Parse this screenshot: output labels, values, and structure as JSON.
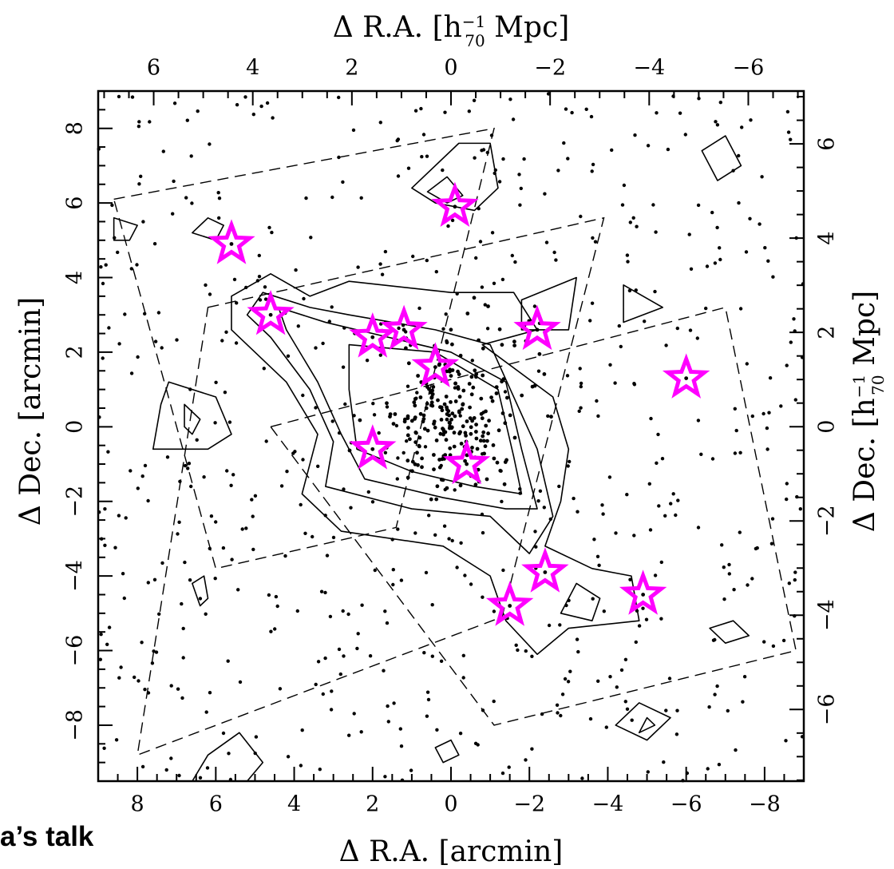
{
  "chart_data": {
    "type": "scatter",
    "title": "",
    "xlabel": "Δ R.A. [arcmin]",
    "ylabel": "Δ Dec. [arcmin]",
    "x2label": "Δ R.A. [h",
    "x2label_sub": "70",
    "x2label_sup": "−1",
    "x2label_unit": " Mpc]",
    "y2label": "Δ Dec. [h",
    "y2label_sub": "70",
    "y2label_sup": "−1",
    "y2label_unit": " Mpc]",
    "xlim": [
      9,
      -9
    ],
    "ylim": [
      -9.5,
      9
    ],
    "x2lim": [
      7.12,
      -7.12
    ],
    "y2lim": [
      -7.52,
      7.12
    ],
    "xticks": [
      "8",
      "6",
      "4",
      "2",
      "0",
      "−2",
      "−4",
      "−6",
      "−8"
    ],
    "xtick_values": [
      8,
      6,
      4,
      2,
      0,
      -2,
      -4,
      -6,
      -8
    ],
    "x2ticks": [
      "6",
      "4",
      "2",
      "0",
      "−2",
      "−4",
      "−6"
    ],
    "x2tick_values": [
      6,
      4,
      2,
      0,
      -2,
      -4,
      -6
    ],
    "yticks": [
      "−8",
      "−6",
      "−4",
      "−2",
      "0",
      "2",
      "4",
      "6",
      "8"
    ],
    "ytick_values": [
      -8,
      -6,
      -4,
      -2,
      0,
      2,
      4,
      6,
      8
    ],
    "y2ticks": [
      "−6",
      "−4",
      "−2",
      "0",
      "2",
      "4",
      "6"
    ],
    "y2tick_values": [
      -6,
      -4,
      -2,
      0,
      2,
      4,
      6
    ],
    "grid": false,
    "marker_color": "#000000",
    "highlight_color": "#ff00ff",
    "highlighted_sources": [
      {
        "x": 5.6,
        "y": 4.9
      },
      {
        "x": 4.6,
        "y": 3.0
      },
      {
        "x": 2.0,
        "y": 2.4
      },
      {
        "x": 1.2,
        "y": 2.6
      },
      {
        "x": 0.4,
        "y": 1.6
      },
      {
        "x": 2.0,
        "y": -0.6
      },
      {
        "x": -0.4,
        "y": -1.0
      },
      {
        "x": -0.1,
        "y": 5.9
      },
      {
        "x": -2.2,
        "y": 2.6
      },
      {
        "x": -6.0,
        "y": 1.3
      },
      {
        "x": -2.4,
        "y": -3.9
      },
      {
        "x": -1.5,
        "y": -4.8
      },
      {
        "x": -4.9,
        "y": -4.5
      }
    ],
    "dense_core": {
      "center": [
        0.0,
        0.3
      ],
      "spread": [
        1.6,
        1.9
      ],
      "count": 230
    },
    "background_source_count": 620,
    "survey_footprints": [
      [
        [
          8.6,
          6.1
        ],
        [
          -1.1,
          8.0
        ],
        [
          1.4,
          -2.7
        ],
        [
          6.0,
          -3.8
        ]
      ],
      [
        [
          6.2,
          3.2
        ],
        [
          -3.9,
          5.6
        ],
        [
          -1.3,
          -5.1
        ],
        [
          8.0,
          -8.8
        ]
      ],
      [
        [
          4.6,
          0.0
        ],
        [
          -7.0,
          3.2
        ],
        [
          -8.8,
          -6.0
        ],
        [
          -1.1,
          -8.0
        ]
      ]
    ],
    "contours": [
      {
        "level": 1,
        "points": [
          [
            5.6,
            3.5
          ],
          [
            4.6,
            4.1
          ],
          [
            3.6,
            3.5
          ],
          [
            2.6,
            3.9
          ],
          [
            0.0,
            3.6
          ],
          [
            -1.6,
            3.6
          ],
          [
            -2.2,
            2.6
          ],
          [
            -0.8,
            2.2
          ],
          [
            -2.6,
            0.8
          ],
          [
            -3.0,
            -0.6
          ],
          [
            -2.8,
            -2.0
          ],
          [
            -2.4,
            -3.2
          ],
          [
            -3.6,
            -3.8
          ],
          [
            -4.6,
            -4.0
          ],
          [
            -4.8,
            -5.2
          ],
          [
            -3.0,
            -5.4
          ],
          [
            -2.2,
            -6.1
          ],
          [
            -1.4,
            -5.2
          ],
          [
            -1.0,
            -4.0
          ],
          [
            0.2,
            -3.2
          ],
          [
            2.8,
            -2.8
          ],
          [
            3.8,
            -1.8
          ],
          [
            3.4,
            -0.2
          ],
          [
            4.2,
            1.2
          ],
          [
            5.6,
            2.6
          ]
        ]
      },
      {
        "level": 2,
        "points": [
          [
            4.8,
            3.6
          ],
          [
            3.6,
            3.2
          ],
          [
            2.6,
            3.0
          ],
          [
            0.4,
            2.6
          ],
          [
            -1.0,
            2.2
          ],
          [
            -1.6,
            0.8
          ],
          [
            -2.2,
            -0.6
          ],
          [
            -2.6,
            -2.4
          ],
          [
            -2.0,
            -3.4
          ],
          [
            -1.0,
            -2.4
          ],
          [
            1.0,
            -2.2
          ],
          [
            3.2,
            -1.6
          ],
          [
            3.0,
            -0.4
          ],
          [
            3.6,
            1.0
          ],
          [
            4.6,
            2.4
          ],
          [
            5.2,
            3.0
          ]
        ]
      },
      {
        "level": 3,
        "points": [
          [
            4.4,
            3.2
          ],
          [
            3.2,
            2.8
          ],
          [
            1.6,
            2.4
          ],
          [
            0.0,
            2.0
          ],
          [
            -1.4,
            1.2
          ],
          [
            -1.8,
            -0.6
          ],
          [
            -2.2,
            -2.2
          ],
          [
            -1.4,
            -2.2
          ],
          [
            0.2,
            -1.9
          ],
          [
            2.2,
            -1.4
          ],
          [
            2.8,
            -0.2
          ],
          [
            3.4,
            1.2
          ],
          [
            4.2,
            2.6
          ]
        ]
      },
      {
        "level": 4,
        "points": [
          [
            2.6,
            2.2
          ],
          [
            0.4,
            2.0
          ],
          [
            -1.2,
            1.0
          ],
          [
            -1.6,
            -0.8
          ],
          [
            -1.8,
            -1.8
          ],
          [
            -0.6,
            -1.6
          ],
          [
            1.0,
            -1.2
          ],
          [
            2.4,
            -0.6
          ],
          [
            2.6,
            1.0
          ]
        ]
      },
      {
        "level": 1,
        "points": [
          [
            1.0,
            6.4
          ],
          [
            -0.2,
            7.6
          ],
          [
            -1.0,
            7.6
          ],
          [
            -1.2,
            6.4
          ],
          [
            -0.6,
            5.8
          ],
          [
            0.4,
            6.0
          ]
        ]
      },
      {
        "level": 2,
        "points": [
          [
            0.6,
            6.3
          ],
          [
            0.1,
            6.7
          ],
          [
            -0.3,
            6.2
          ],
          [
            0.1,
            6.0
          ]
        ]
      },
      {
        "level": 1,
        "points": [
          [
            -3.2,
            4.0
          ],
          [
            -1.8,
            3.4
          ],
          [
            -1.8,
            2.6
          ],
          [
            -3.0,
            2.6
          ]
        ]
      },
      {
        "level": 1,
        "points": [
          [
            7.2,
            1.2
          ],
          [
            6.0,
            0.8
          ],
          [
            5.6,
            -0.2
          ],
          [
            6.2,
            -0.6
          ],
          [
            7.6,
            -0.6
          ],
          [
            7.4,
            0.6
          ]
        ]
      },
      {
        "level": 2,
        "points": [
          [
            6.8,
            0.6
          ],
          [
            6.4,
            0.2
          ],
          [
            6.6,
            -0.2
          ],
          [
            6.8,
            0.0
          ]
        ]
      },
      {
        "level": 1,
        "points": [
          [
            -6.4,
            7.4
          ],
          [
            -6.8,
            6.6
          ],
          [
            -7.4,
            7.0
          ],
          [
            -7.0,
            7.8
          ]
        ]
      },
      {
        "level": 1,
        "points": [
          [
            -4.4,
            3.8
          ],
          [
            -4.4,
            2.8
          ],
          [
            -5.4,
            3.2
          ]
        ]
      },
      {
        "level": 1,
        "points": [
          [
            8.6,
            5.6
          ],
          [
            8.6,
            5.0
          ],
          [
            8.2,
            5.0
          ],
          [
            8.0,
            5.4
          ]
        ]
      },
      {
        "level": 1,
        "points": [
          [
            6.6,
            5.2
          ],
          [
            6.0,
            5.0
          ],
          [
            5.8,
            5.4
          ],
          [
            6.2,
            5.6
          ]
        ]
      },
      {
        "level": 1,
        "points": [
          [
            -3.2,
            -4.2
          ],
          [
            -3.8,
            -4.6
          ],
          [
            -3.6,
            -5.2
          ],
          [
            -2.8,
            -5.0
          ]
        ]
      },
      {
        "level": 1,
        "points": [
          [
            -7.2,
            -5.2
          ],
          [
            -7.6,
            -5.6
          ],
          [
            -7.0,
            -5.8
          ],
          [
            -6.6,
            -5.4
          ]
        ]
      },
      {
        "level": 1,
        "points": [
          [
            -4.8,
            -7.4
          ],
          [
            -5.6,
            -7.8
          ],
          [
            -5.0,
            -8.4
          ],
          [
            -4.2,
            -8.0
          ]
        ]
      },
      {
        "level": 2,
        "points": [
          [
            -5.0,
            -7.8
          ],
          [
            -5.2,
            -8.0
          ],
          [
            -4.8,
            -8.2
          ]
        ]
      },
      {
        "level": 1,
        "points": [
          [
            6.6,
            -4.2
          ],
          [
            6.4,
            -4.8
          ],
          [
            6.2,
            -4.6
          ],
          [
            6.3,
            -4.0
          ]
        ]
      },
      {
        "level": 1,
        "points": [
          [
            6.2,
            -8.8
          ],
          [
            5.4,
            -8.2
          ],
          [
            4.8,
            -9.0
          ],
          [
            5.2,
            -9.5
          ],
          [
            6.6,
            -9.5
          ]
        ]
      },
      {
        "level": 1,
        "points": [
          [
            0.4,
            -8.6
          ],
          [
            0.0,
            -8.4
          ],
          [
            -0.2,
            -8.8
          ],
          [
            0.2,
            -9.0
          ]
        ]
      }
    ]
  },
  "caption": {
    "text": "a’s talk"
  }
}
